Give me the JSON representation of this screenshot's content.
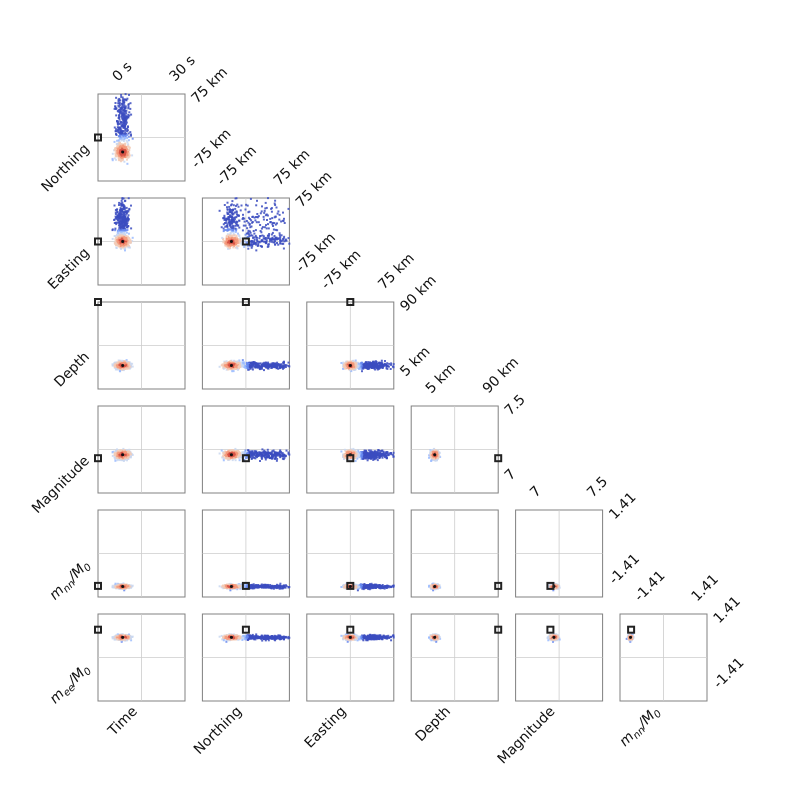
{
  "chart_data": {
    "type": "corner-scatter",
    "variables": [
      {
        "key": "time",
        "label": "Time",
        "range_labels": [
          "0 s",
          "30 s"
        ],
        "range": [
          0,
          30
        ],
        "true": -5
      },
      {
        "key": "north",
        "label": "Northing",
        "range_labels": [
          "-75 km",
          "75 km"
        ],
        "range": [
          -75,
          75
        ],
        "true": 0
      },
      {
        "key": "east",
        "label": "Easting",
        "range_labels": [
          "-75 km",
          "75 km"
        ],
        "range": [
          -75,
          75
        ],
        "true": 0
      },
      {
        "key": "depth",
        "label": "Depth",
        "range_labels": [
          "5 km",
          "90 km"
        ],
        "range": [
          5,
          90
        ],
        "true": 90
      },
      {
        "key": "mag",
        "label": "Magnitude",
        "range_labels": [
          "7",
          "7.5"
        ],
        "range": [
          7.0,
          7.5
        ],
        "true": 7.2
      },
      {
        "key": "mnn",
        "label_base": "m",
        "label_sub": "nn",
        "label_tail": "/M",
        "label_tail_sub": "0",
        "range_labels": [
          "-1.41",
          "1.41"
        ],
        "range": [
          -1.41,
          1.41
        ],
        "true": -1.05
      },
      {
        "key": "mee",
        "label_base": "m",
        "label_sub": "ee",
        "label_tail": "/M",
        "label_tail_sub": "0",
        "range_labels": [
          "-1.41",
          "1.41"
        ],
        "range": [
          -1.41,
          1.41
        ],
        "true": 0.9
      }
    ],
    "posterior": {
      "time": {
        "mean": 8.5,
        "sd": 1.2
      },
      "north": {
        "mean": -25,
        "sd": 7,
        "tail": [
          60,
          18,
          0.45
        ]
      },
      "east": {
        "mean": 0,
        "sd": 5,
        "tail": [
          45,
          18,
          0.45
        ]
      },
      "depth": {
        "mean": 28,
        "sd": 1.8
      },
      "mag": {
        "mean": 7.22,
        "sd": 0.012
      },
      "mnn": {
        "mean": -1.07,
        "sd": 0.03
      },
      "mee": {
        "mean": 0.65,
        "sd": 0.035
      }
    },
    "grid": "center-lines",
    "colormap": [
      "#3b4cc0",
      "#6788ee",
      "#9abbff",
      "#c9d7f0",
      "#f2cbb7",
      "#f49a7b",
      "#d65244",
      "#b40426"
    ]
  }
}
